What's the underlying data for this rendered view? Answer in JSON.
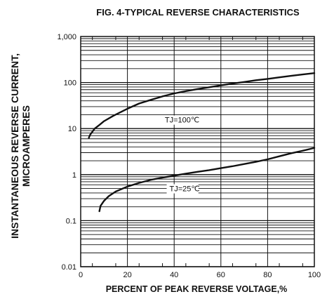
{
  "chart_data": {
    "type": "line",
    "title": "FIG. 4-TYPICAL REVERSE CHARACTERISTICS",
    "xlabel": "PERCENT OF PEAK REVERSE VOLTAGE,%",
    "ylabel_lines": [
      "INSTANTANEOUS REVERSE CURRENT,",
      "MICROAMPERES"
    ],
    "xlim": [
      0,
      100
    ],
    "ylim": [
      0.01,
      1000
    ],
    "yscale": "log",
    "grid": true,
    "x_ticks": [
      0,
      20,
      40,
      60,
      80,
      100
    ],
    "x_tick_labels": [
      "0",
      "20",
      "40",
      "60",
      "80",
      "100"
    ],
    "y_ticks": [
      0.01,
      0.1,
      1,
      10,
      100,
      1000
    ],
    "y_tick_labels": [
      "0.01",
      "0.1",
      "1",
      "10",
      "100",
      "1,000"
    ],
    "series": [
      {
        "name": "TJ=100℃",
        "label_at": [
          36,
          14
        ],
        "x": [
          3.5,
          4,
          6,
          8,
          10,
          14,
          20,
          25,
          30,
          35,
          40,
          45,
          50,
          55,
          60,
          65,
          70,
          75,
          80,
          85,
          90,
          95,
          100
        ],
        "y": [
          6.3,
          7.3,
          10,
          12,
          14.5,
          19,
          27,
          35,
          42,
          50,
          58,
          65,
          72,
          79,
          87,
          95,
          103,
          112,
          120,
          130,
          140,
          150,
          160
        ]
      },
      {
        "name": "TJ=25℃",
        "label_at": [
          38,
          0.45
        ],
        "x": [
          8,
          8.5,
          10,
          12,
          15,
          20,
          25,
          30,
          35,
          40,
          45,
          50,
          55,
          60,
          65,
          70,
          75,
          80,
          85,
          90,
          95,
          100
        ],
        "y": [
          0.16,
          0.21,
          0.27,
          0.34,
          0.43,
          0.55,
          0.66,
          0.77,
          0.86,
          0.95,
          1.05,
          1.15,
          1.25,
          1.38,
          1.52,
          1.7,
          1.9,
          2.15,
          2.5,
          2.9,
          3.3,
          3.8
        ]
      }
    ]
  }
}
